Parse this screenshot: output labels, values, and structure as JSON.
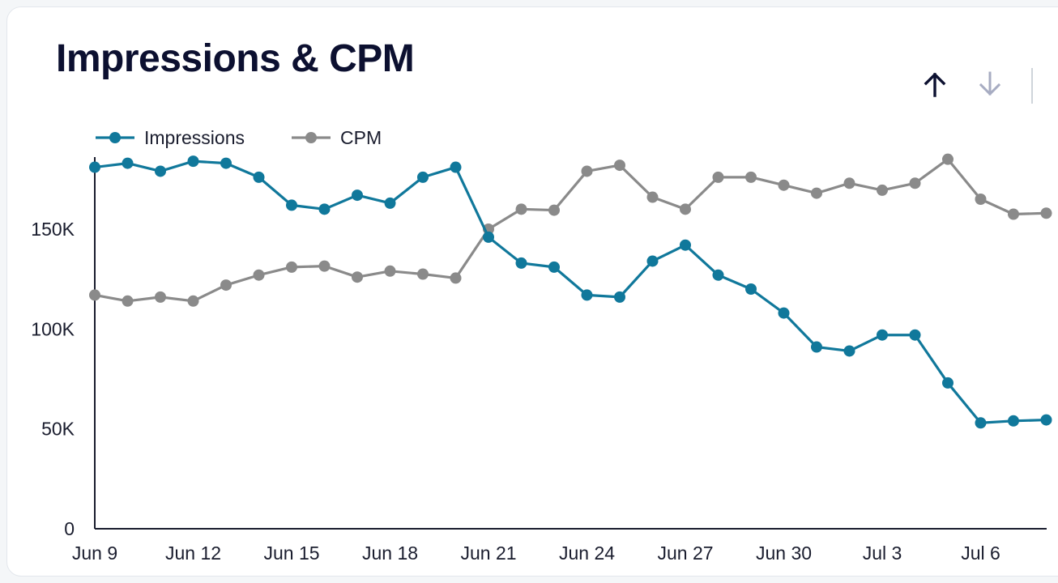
{
  "card": {
    "title": "Impressions & CPM"
  },
  "toolbar": {
    "sort_up_icon": "arrow-up-icon",
    "sort_down_icon": "arrow-down-icon"
  },
  "colors": {
    "impressions": "#10789b",
    "cpm": "#8a8a8a",
    "axis": "#1a1d2e",
    "title": "#0c1030",
    "sort_active": "#0c1030",
    "sort_inactive": "#a7acc2"
  },
  "chart_data": {
    "type": "line",
    "title": "Impressions & CPM",
    "xlabel": "",
    "ylabel": "",
    "x": [
      "Jun 9",
      "Jun 10",
      "Jun 11",
      "Jun 12",
      "Jun 13",
      "Jun 14",
      "Jun 15",
      "Jun 16",
      "Jun 17",
      "Jun 18",
      "Jun 19",
      "Jun 20",
      "Jun 21",
      "Jun 22",
      "Jun 23",
      "Jun 24",
      "Jun 25",
      "Jun 26",
      "Jun 27",
      "Jun 28",
      "Jun 29",
      "Jun 30",
      "Jul 1",
      "Jul 2",
      "Jul 3",
      "Jul 4",
      "Jul 5",
      "Jul 6",
      "Jul 7",
      "Jul 8"
    ],
    "x_tick_labels": [
      "Jun 9",
      "Jun 12",
      "Jun 15",
      "Jun 18",
      "Jun 21",
      "Jun 24",
      "Jun 27",
      "Jun 30",
      "Jul 3",
      "Jul 6"
    ],
    "y_tick_labels": [
      "0",
      "50K",
      "100K",
      "150K"
    ],
    "ylim": [
      0,
      187000
    ],
    "legend": "top-left",
    "grid": false,
    "series": [
      {
        "name": "Impressions",
        "values": [
          181000,
          183000,
          179000,
          184000,
          183000,
          176000,
          162000,
          160000,
          167000,
          163000,
          176000,
          181000,
          146000,
          133000,
          131000,
          117000,
          116000,
          134000,
          142000,
          127000,
          120000,
          108000,
          91000,
          89000,
          97000,
          97000,
          73000,
          53000,
          54000,
          54500
        ]
      },
      {
        "name": "CPM",
        "values": [
          117000,
          114000,
          116000,
          114000,
          122000,
          127000,
          131000,
          131500,
          126000,
          129000,
          127500,
          125500,
          150000,
          160000,
          159500,
          179000,
          182000,
          166000,
          160000,
          176000,
          176000,
          172000,
          168000,
          173000,
          169500,
          173000,
          185000,
          165000,
          157500,
          158000
        ]
      }
    ]
  }
}
